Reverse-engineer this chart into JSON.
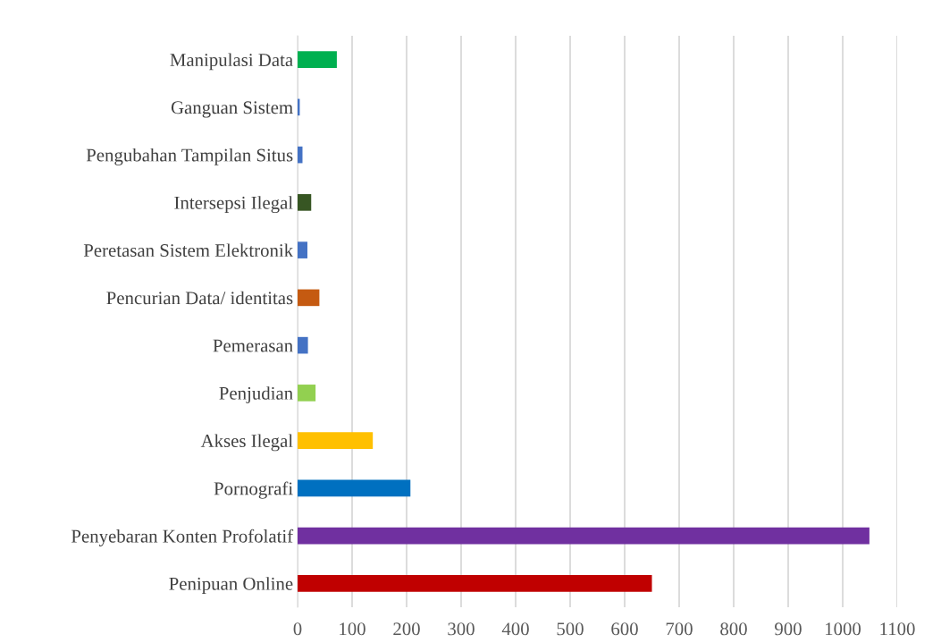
{
  "chart_data": {
    "type": "bar",
    "orientation": "horizontal",
    "categories": [
      "Manipulasi Data",
      "Ganguan Sistem",
      "Pengubahan Tampilan Situs",
      "Intersepsi Ilegal",
      "Peretasan Sistem Elektronik",
      "Pencurian Data/ identitas",
      "Pemerasan",
      "Penjudian",
      "Akses Ilegal",
      "Pornografi",
      "Penyebaran Konten Profolatif",
      "Penipuan Online"
    ],
    "values": [
      72,
      4,
      9,
      25,
      18,
      40,
      19,
      33,
      138,
      207,
      1049,
      650
    ],
    "colors": [
      "#00b050",
      "#4472c4",
      "#4472c4",
      "#375623",
      "#4472c4",
      "#c55a11",
      "#4472c4",
      "#92d050",
      "#ffc000",
      "#0070c0",
      "#7030a0",
      "#c00000"
    ],
    "xlim": [
      0,
      1100
    ],
    "xticks": [
      0,
      100,
      200,
      300,
      400,
      500,
      600,
      700,
      800,
      900,
      1000,
      1100
    ],
    "grid": "x"
  }
}
